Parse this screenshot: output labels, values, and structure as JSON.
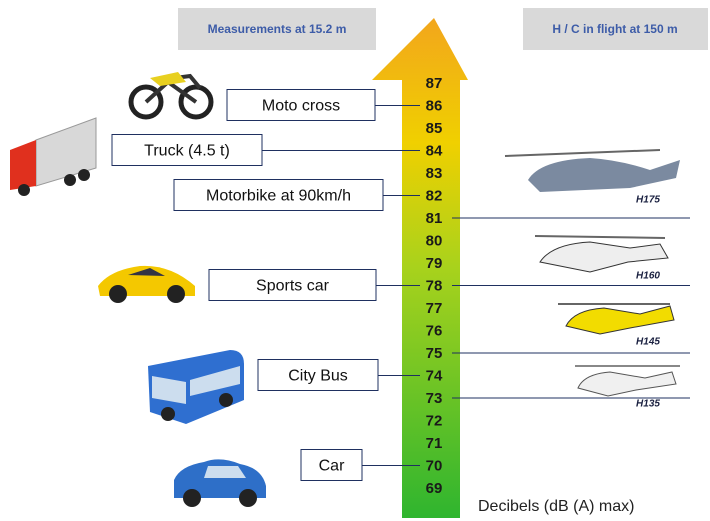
{
  "header": {
    "left": "Measurements at 15.2 m",
    "right": "H / C in flight at 150 m"
  },
  "scale": {
    "levels": [
      87,
      86,
      85,
      84,
      83,
      82,
      81,
      80,
      79,
      78,
      77,
      76,
      75,
      74,
      73,
      72,
      71,
      70,
      69
    ]
  },
  "vehicles": [
    {
      "label": "Moto cross",
      "level": 86
    },
    {
      "label": "Truck  (4.5 t)",
      "level": 84
    },
    {
      "label": "Motorbike at 90km/h",
      "level": 82
    },
    {
      "label": "Sports car",
      "level": 78
    },
    {
      "label": "City Bus",
      "level": 74
    },
    {
      "label": "Car",
      "level": 70
    }
  ],
  "helicopters": [
    {
      "label": "H175",
      "level": 81
    },
    {
      "label": "H160",
      "level": 78
    },
    {
      "label": "H145",
      "level": 75
    },
    {
      "label": "H135",
      "level": 73
    }
  ],
  "footer": "Decibels (dB (A) max)"
}
